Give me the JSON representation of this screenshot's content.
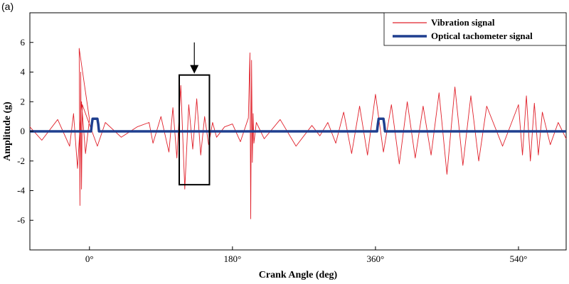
{
  "chart_data": {
    "type": "line",
    "panel_tag": "(a)",
    "title": "",
    "xlabel": "Crank Angle (deg)",
    "ylabel": "Amplitude (g)",
    "xlim": [
      -75,
      600
    ],
    "ylim": [
      -8,
      8
    ],
    "x_ticks": [
      {
        "value": 0,
        "label": "0°"
      },
      {
        "value": 180,
        "label": "180°"
      },
      {
        "value": 360,
        "label": "360°"
      },
      {
        "value": 540,
        "label": "540°"
      }
    ],
    "y_ticks": [
      {
        "value": 6,
        "label": "6"
      },
      {
        "value": 4,
        "label": "4"
      },
      {
        "value": 2,
        "label": "2"
      },
      {
        "value": 0,
        "label": "0"
      },
      {
        "value": -2,
        "label": "-2"
      },
      {
        "value": -4,
        "label": "-4"
      },
      {
        "value": -6,
        "label": "-6"
      }
    ],
    "legend_position": "top-right",
    "series": [
      {
        "name": "Vibration signal",
        "color": "#e0202a",
        "style": "thin",
        "x": [
          -75,
          -60,
          -40,
          -25,
          -20,
          -15,
          -10,
          -5,
          0,
          -13,
          -12,
          -11,
          -10,
          -9,
          10,
          20,
          40,
          60,
          75,
          80,
          90,
          100,
          105,
          110,
          115,
          120,
          125,
          130,
          135,
          140,
          145,
          150,
          155,
          160,
          170,
          180,
          190,
          200,
          202,
          203,
          204,
          205,
          206,
          207,
          210,
          220,
          240,
          260,
          280,
          290,
          300,
          310,
          320,
          330,
          340,
          350,
          360,
          370,
          380,
          390,
          400,
          410,
          420,
          430,
          440,
          450,
          460,
          470,
          480,
          490,
          500,
          520,
          540,
          545,
          550,
          555,
          560,
          565,
          570,
          580,
          590,
          600
        ],
        "y": [
          0.3,
          -0.6,
          0.8,
          -1.0,
          1.2,
          -2.5,
          2.0,
          -1.5,
          0.8,
          5.6,
          -5.0,
          4.0,
          -3.9,
          1.8,
          -1.0,
          0.6,
          -0.4,
          0.3,
          0.6,
          -0.8,
          1.0,
          -1.4,
          1.6,
          -1.8,
          3.1,
          -3.9,
          1.8,
          -1.2,
          2.2,
          -1.6,
          1.0,
          -0.9,
          0.6,
          -0.4,
          0.3,
          0.5,
          -0.7,
          0.9,
          5.3,
          -5.9,
          4.8,
          -2.1,
          1.2,
          -0.8,
          0.6,
          -0.5,
          0.8,
          -1.0,
          0.4,
          -0.3,
          0.6,
          -0.8,
          1.3,
          -1.5,
          1.7,
          -1.6,
          2.5,
          -1.4,
          1.8,
          -2.2,
          2.0,
          -1.8,
          1.7,
          -1.6,
          2.6,
          -2.9,
          3.0,
          -2.3,
          2.4,
          -2.0,
          1.7,
          -1.0,
          1.8,
          -1.6,
          2.4,
          -2.0,
          1.9,
          -1.6,
          1.3,
          -0.9,
          0.6,
          -0.5
        ]
      },
      {
        "name": "Optical tachometer signal",
        "color": "#1f3f8f",
        "style": "thick",
        "x": [
          -75,
          2,
          3,
          4,
          10,
          11,
          12,
          362,
          363,
          364,
          370,
          371,
          372,
          600
        ],
        "y": [
          0,
          0,
          0.5,
          0.85,
          0.85,
          0.5,
          0,
          0,
          0.5,
          0.85,
          0.85,
          0.5,
          0,
          0
        ]
      }
    ],
    "annotations": [
      {
        "type": "rectangle",
        "x": [
          113,
          151
        ],
        "y": [
          -3.6,
          3.8
        ]
      },
      {
        "type": "arrow",
        "x": 132,
        "y_from": 6.0,
        "y_to": 3.9
      }
    ]
  }
}
